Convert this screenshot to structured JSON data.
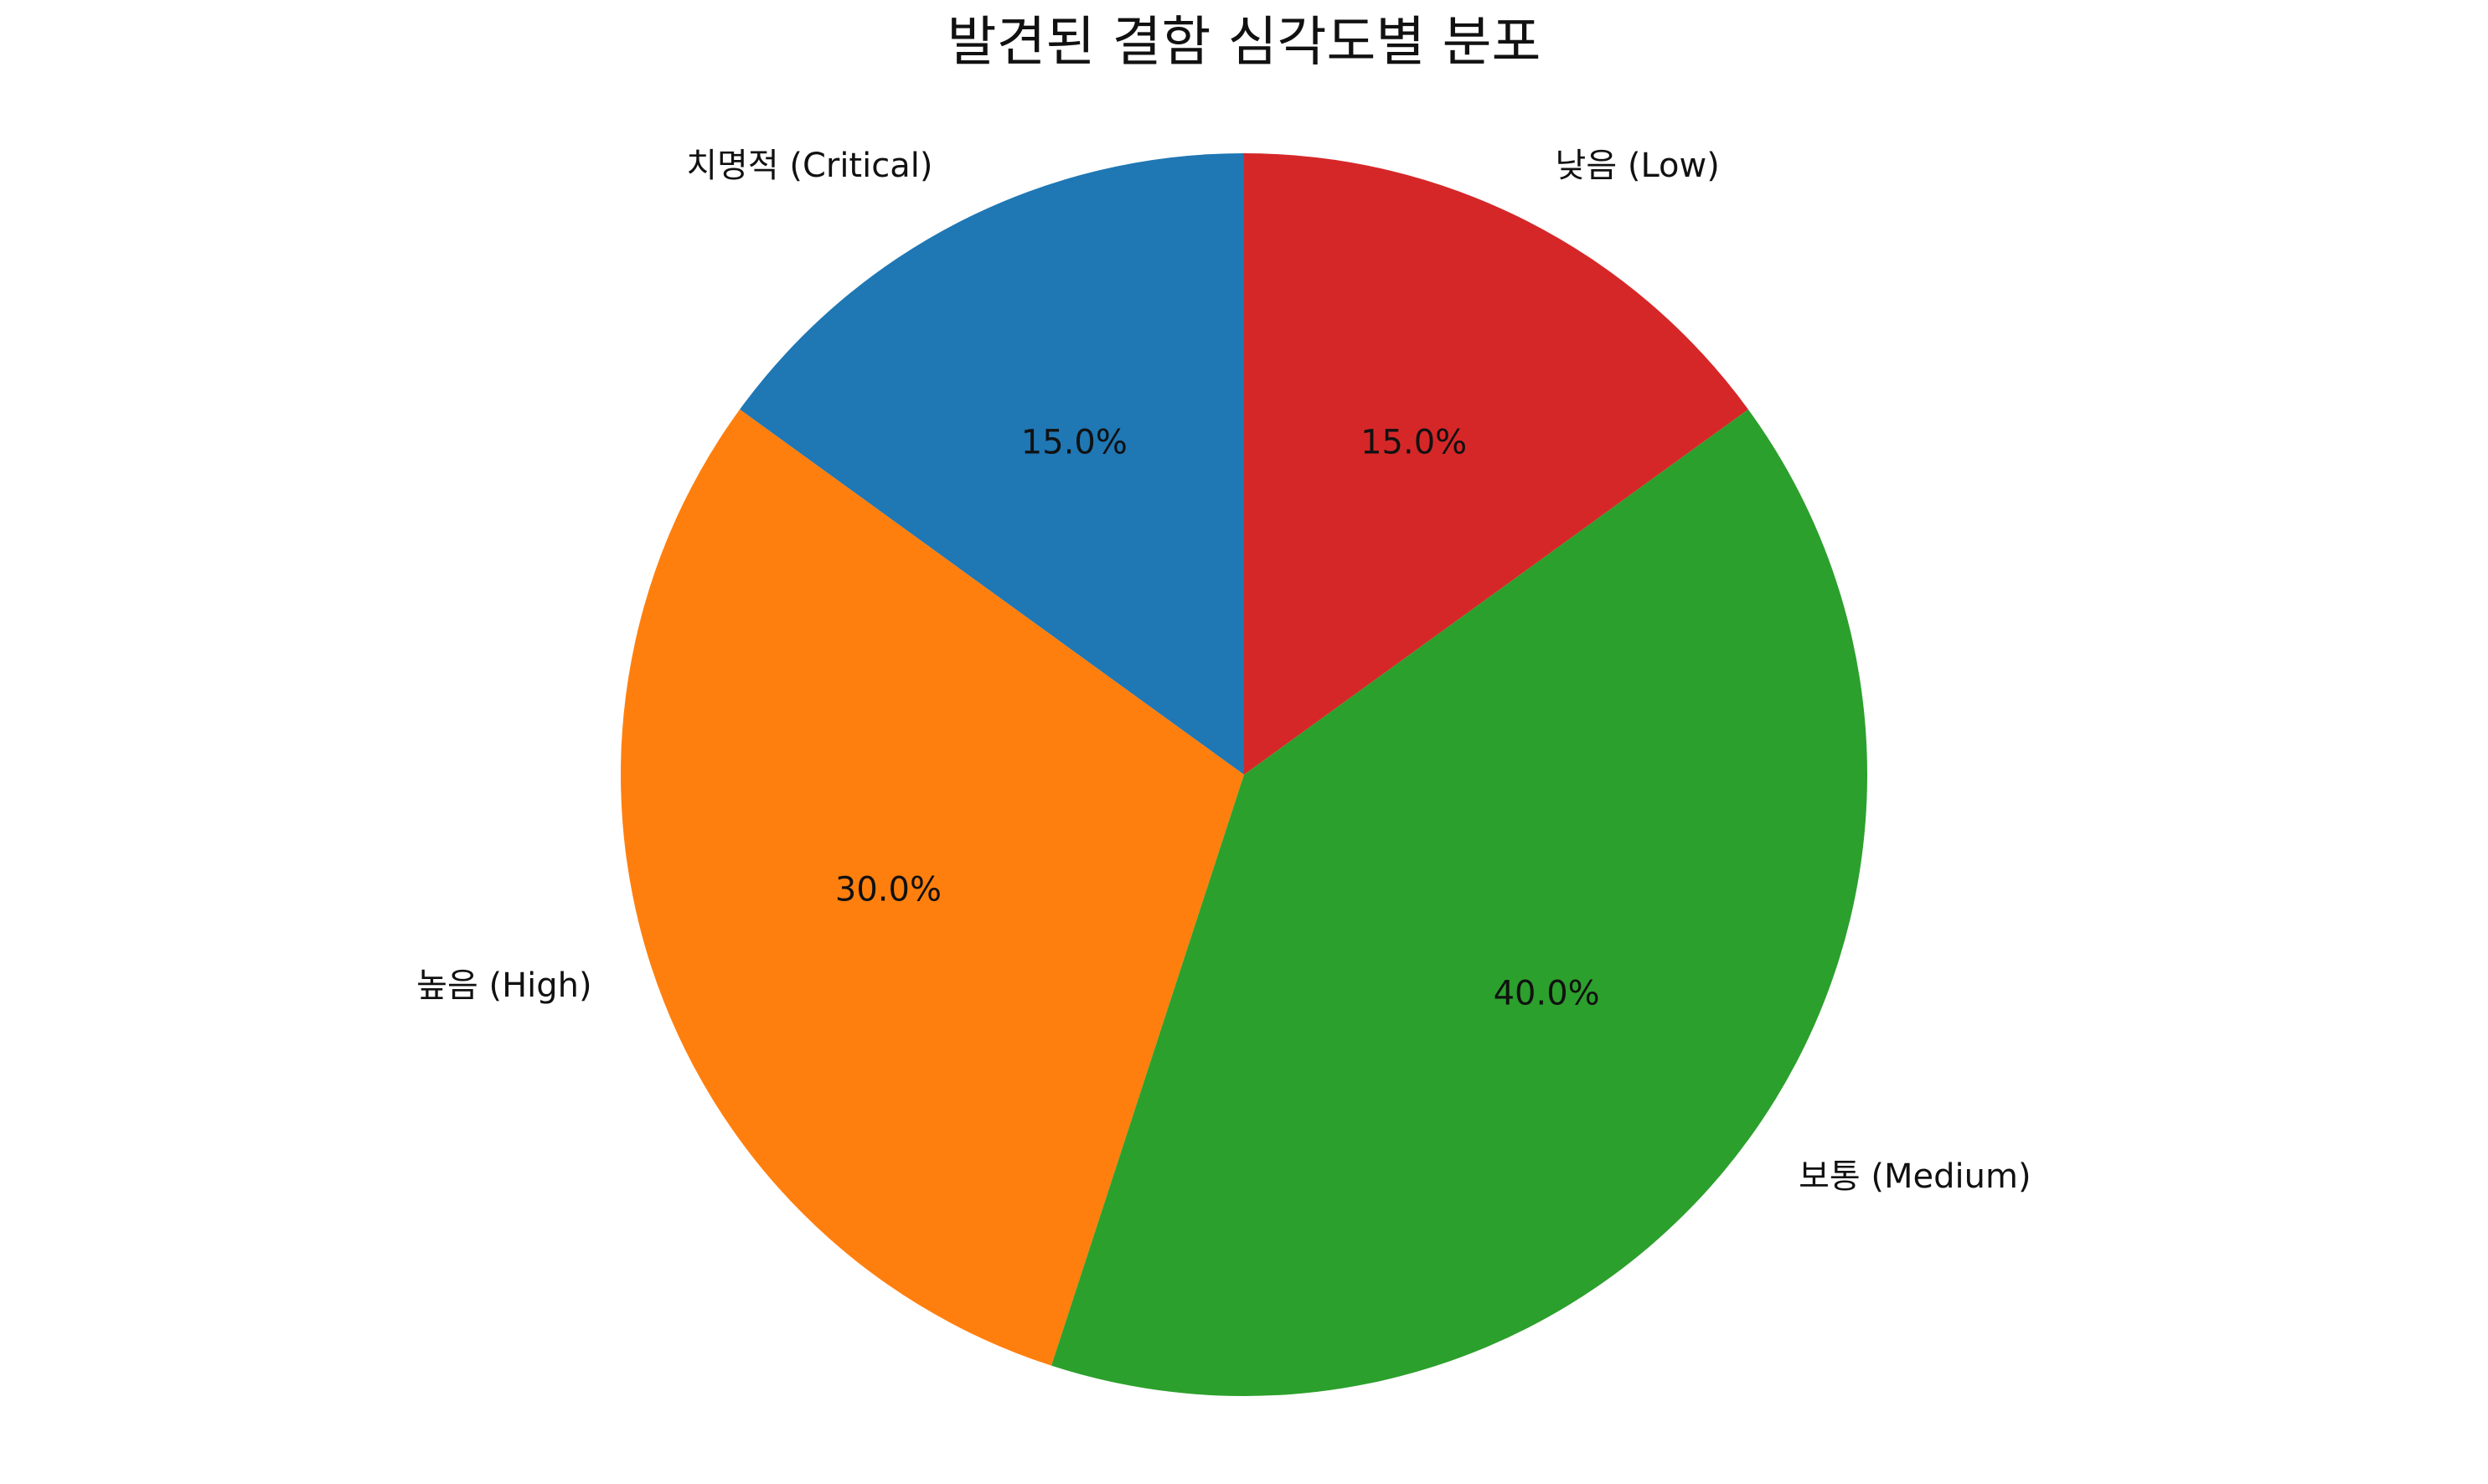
{
  "chart_data": {
    "type": "pie",
    "title": "발견된 결함 심각도별 분포",
    "categories": [
      "치명적 (Critical)",
      "높음 (High)",
      "보통 (Medium)",
      "낮음 (Low)"
    ],
    "values": [
      15.0,
      30.0,
      40.0,
      15.0
    ],
    "percent_labels": [
      "15.0%",
      "30.0%",
      "40.0%",
      "15.0%"
    ],
    "colors": [
      "#1f77b4",
      "#ff7f0e",
      "#2ca02c",
      "#d62728"
    ],
    "start_angle": 90,
    "direction": "counterclockwise",
    "legend": "none"
  }
}
